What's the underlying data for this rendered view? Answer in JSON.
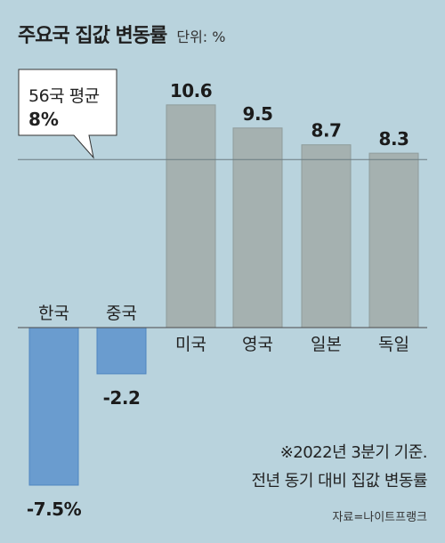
{
  "header": {
    "title": "주요국 집값 변동률",
    "unit": "단위: %"
  },
  "callout": {
    "label": "56국 평균",
    "value": "8%"
  },
  "chart_data": {
    "type": "bar",
    "categories": [
      "한국",
      "중국",
      "미국",
      "영국",
      "일본",
      "독일"
    ],
    "values": [
      -7.5,
      -2.2,
      10.6,
      9.5,
      8.7,
      8.3
    ],
    "value_labels": [
      "-7.5%",
      "-2.2",
      "10.6",
      "9.5",
      "8.7",
      "8.3"
    ],
    "reference_line": {
      "label": "56국 평균",
      "value": 8
    },
    "ylim": [
      -8.2,
      11.4
    ],
    "colors": {
      "negative": "#6a9ccf",
      "positive": "#a5b1b0",
      "negative_edge": "#4f86c0",
      "positive_edge": "#8f9c9b"
    }
  },
  "notes": {
    "line1": "※2022년 3분기 기준.",
    "line2": "전년 동기 대비 집값 변동률",
    "source": "자료=나이트프랭크"
  }
}
